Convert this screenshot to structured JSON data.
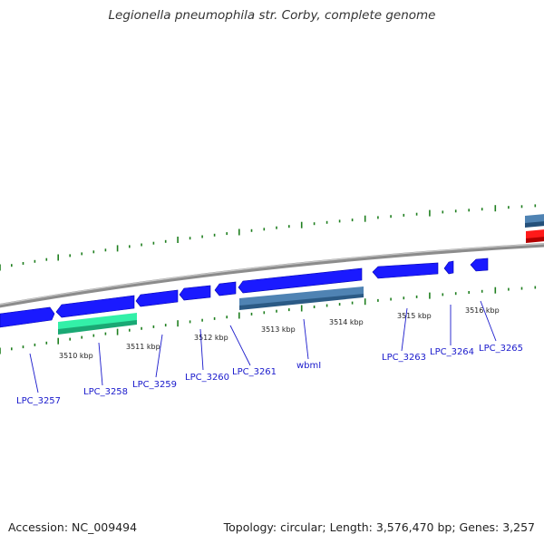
{
  "title": "Legionella pneumophila str. Corby, complete genome",
  "footer": {
    "accession": "Accession: NC_009494",
    "topology": "Topology: circular; Length: 3,576,470 bp; Genes: 3,257"
  },
  "colors": {
    "backbone": "#8c8c8c",
    "cds_blue": "#1a1aff",
    "steel_blue": "#4f83b3",
    "green_feature": "#33f0a8",
    "red_feature": "#ff1a1a",
    "gc_ticks": "#1f7f1f",
    "label_blue": "#1a1acc"
  },
  "scale_labels": [
    "3510 kbp",
    "3511 kbp",
    "3512 kbp",
    "3513 kbp",
    "3514 kbp",
    "3515 kbp",
    "3516 kbp"
  ],
  "gene_labels": [
    "LPC_3257",
    "LPC_3258",
    "LPC_3259",
    "LPC_3260",
    "LPC_3261",
    "wbmI",
    "LPC_3263",
    "LPC_3264",
    "LPC_3265"
  ]
}
